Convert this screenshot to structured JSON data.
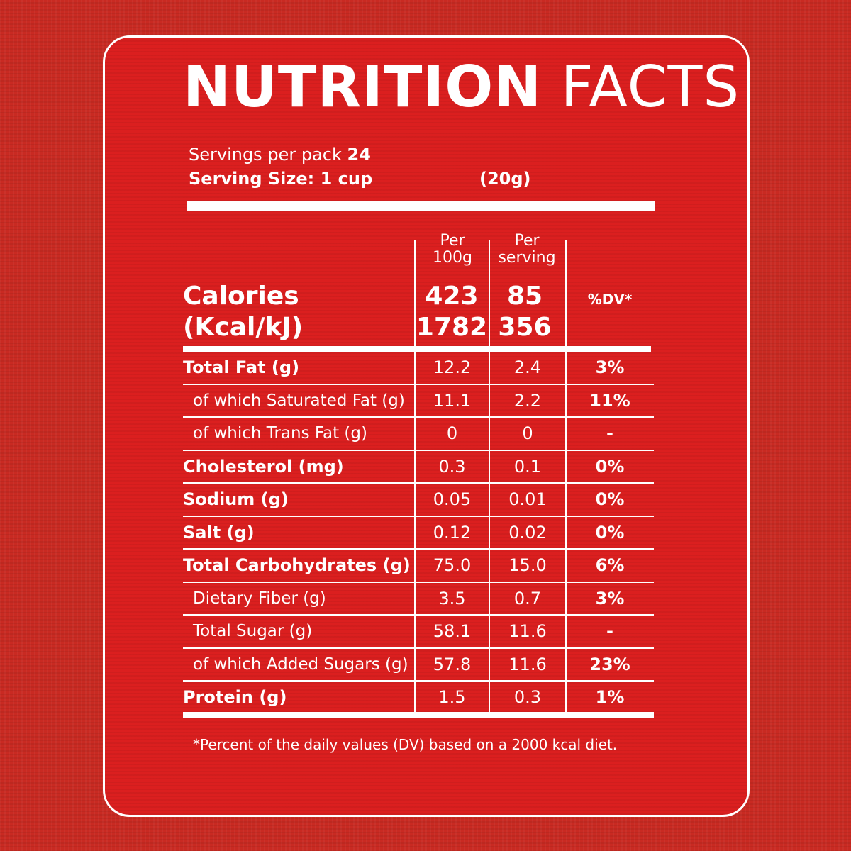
{
  "title": {
    "bold": "NUTRITION",
    "light": "FACTS"
  },
  "servings_label": "Servings per pack",
  "servings_value": "24",
  "serving_size": "Serving Size: 1 cup",
  "serving_weight": "(20g)",
  "columns": {
    "per100": [
      "Per",
      "100g"
    ],
    "perserving": [
      "Per",
      "serving"
    ],
    "dv": "%DV*"
  },
  "calories": {
    "label": [
      "Calories",
      "(Kcal/kJ)"
    ],
    "per100": [
      "423",
      "1782"
    ],
    "perserving": [
      "85",
      "356"
    ]
  },
  "rows": [
    {
      "label": "Total Fat (g)",
      "per100": "12.2",
      "serving": "2.4",
      "dv": "3%"
    },
    {
      "label": "of which Saturated Fat (g)",
      "per100": "11.1",
      "serving": "2.2",
      "dv": "11%"
    },
    {
      "label": "of which Trans Fat (g)",
      "per100": "0",
      "serving": "0",
      "dv": "-"
    },
    {
      "label": "Cholesterol (mg)",
      "per100": "0.3",
      "serving": "0.1",
      "dv": "0%"
    },
    {
      "label": "Sodium (g)",
      "per100": "0.05",
      "serving": "0.01",
      "dv": "0%"
    },
    {
      "label": "Salt (g)",
      "per100": "0.12",
      "serving": "0.02",
      "dv": "0%"
    },
    {
      "label": "Total Carbohydrates (g)",
      "per100": "75.0",
      "serving": "15.0",
      "dv": "6%"
    },
    {
      "label": "Dietary Fiber (g)",
      "per100": "3.5",
      "serving": "0.7",
      "dv": "3%"
    },
    {
      "label": "Total Sugar (g)",
      "per100": "58.1",
      "serving": "11.6",
      "dv": "-"
    },
    {
      "label": "of which Added Sugars (g)",
      "per100": "57.8",
      "serving": "11.6",
      "dv": "23%"
    },
    {
      "label": "Protein (g)",
      "per100": "1.5",
      "serving": "0.3",
      "dv": "1%"
    }
  ],
  "footnote": "*Percent of the daily values (DV) based on a 2000 kcal diet."
}
